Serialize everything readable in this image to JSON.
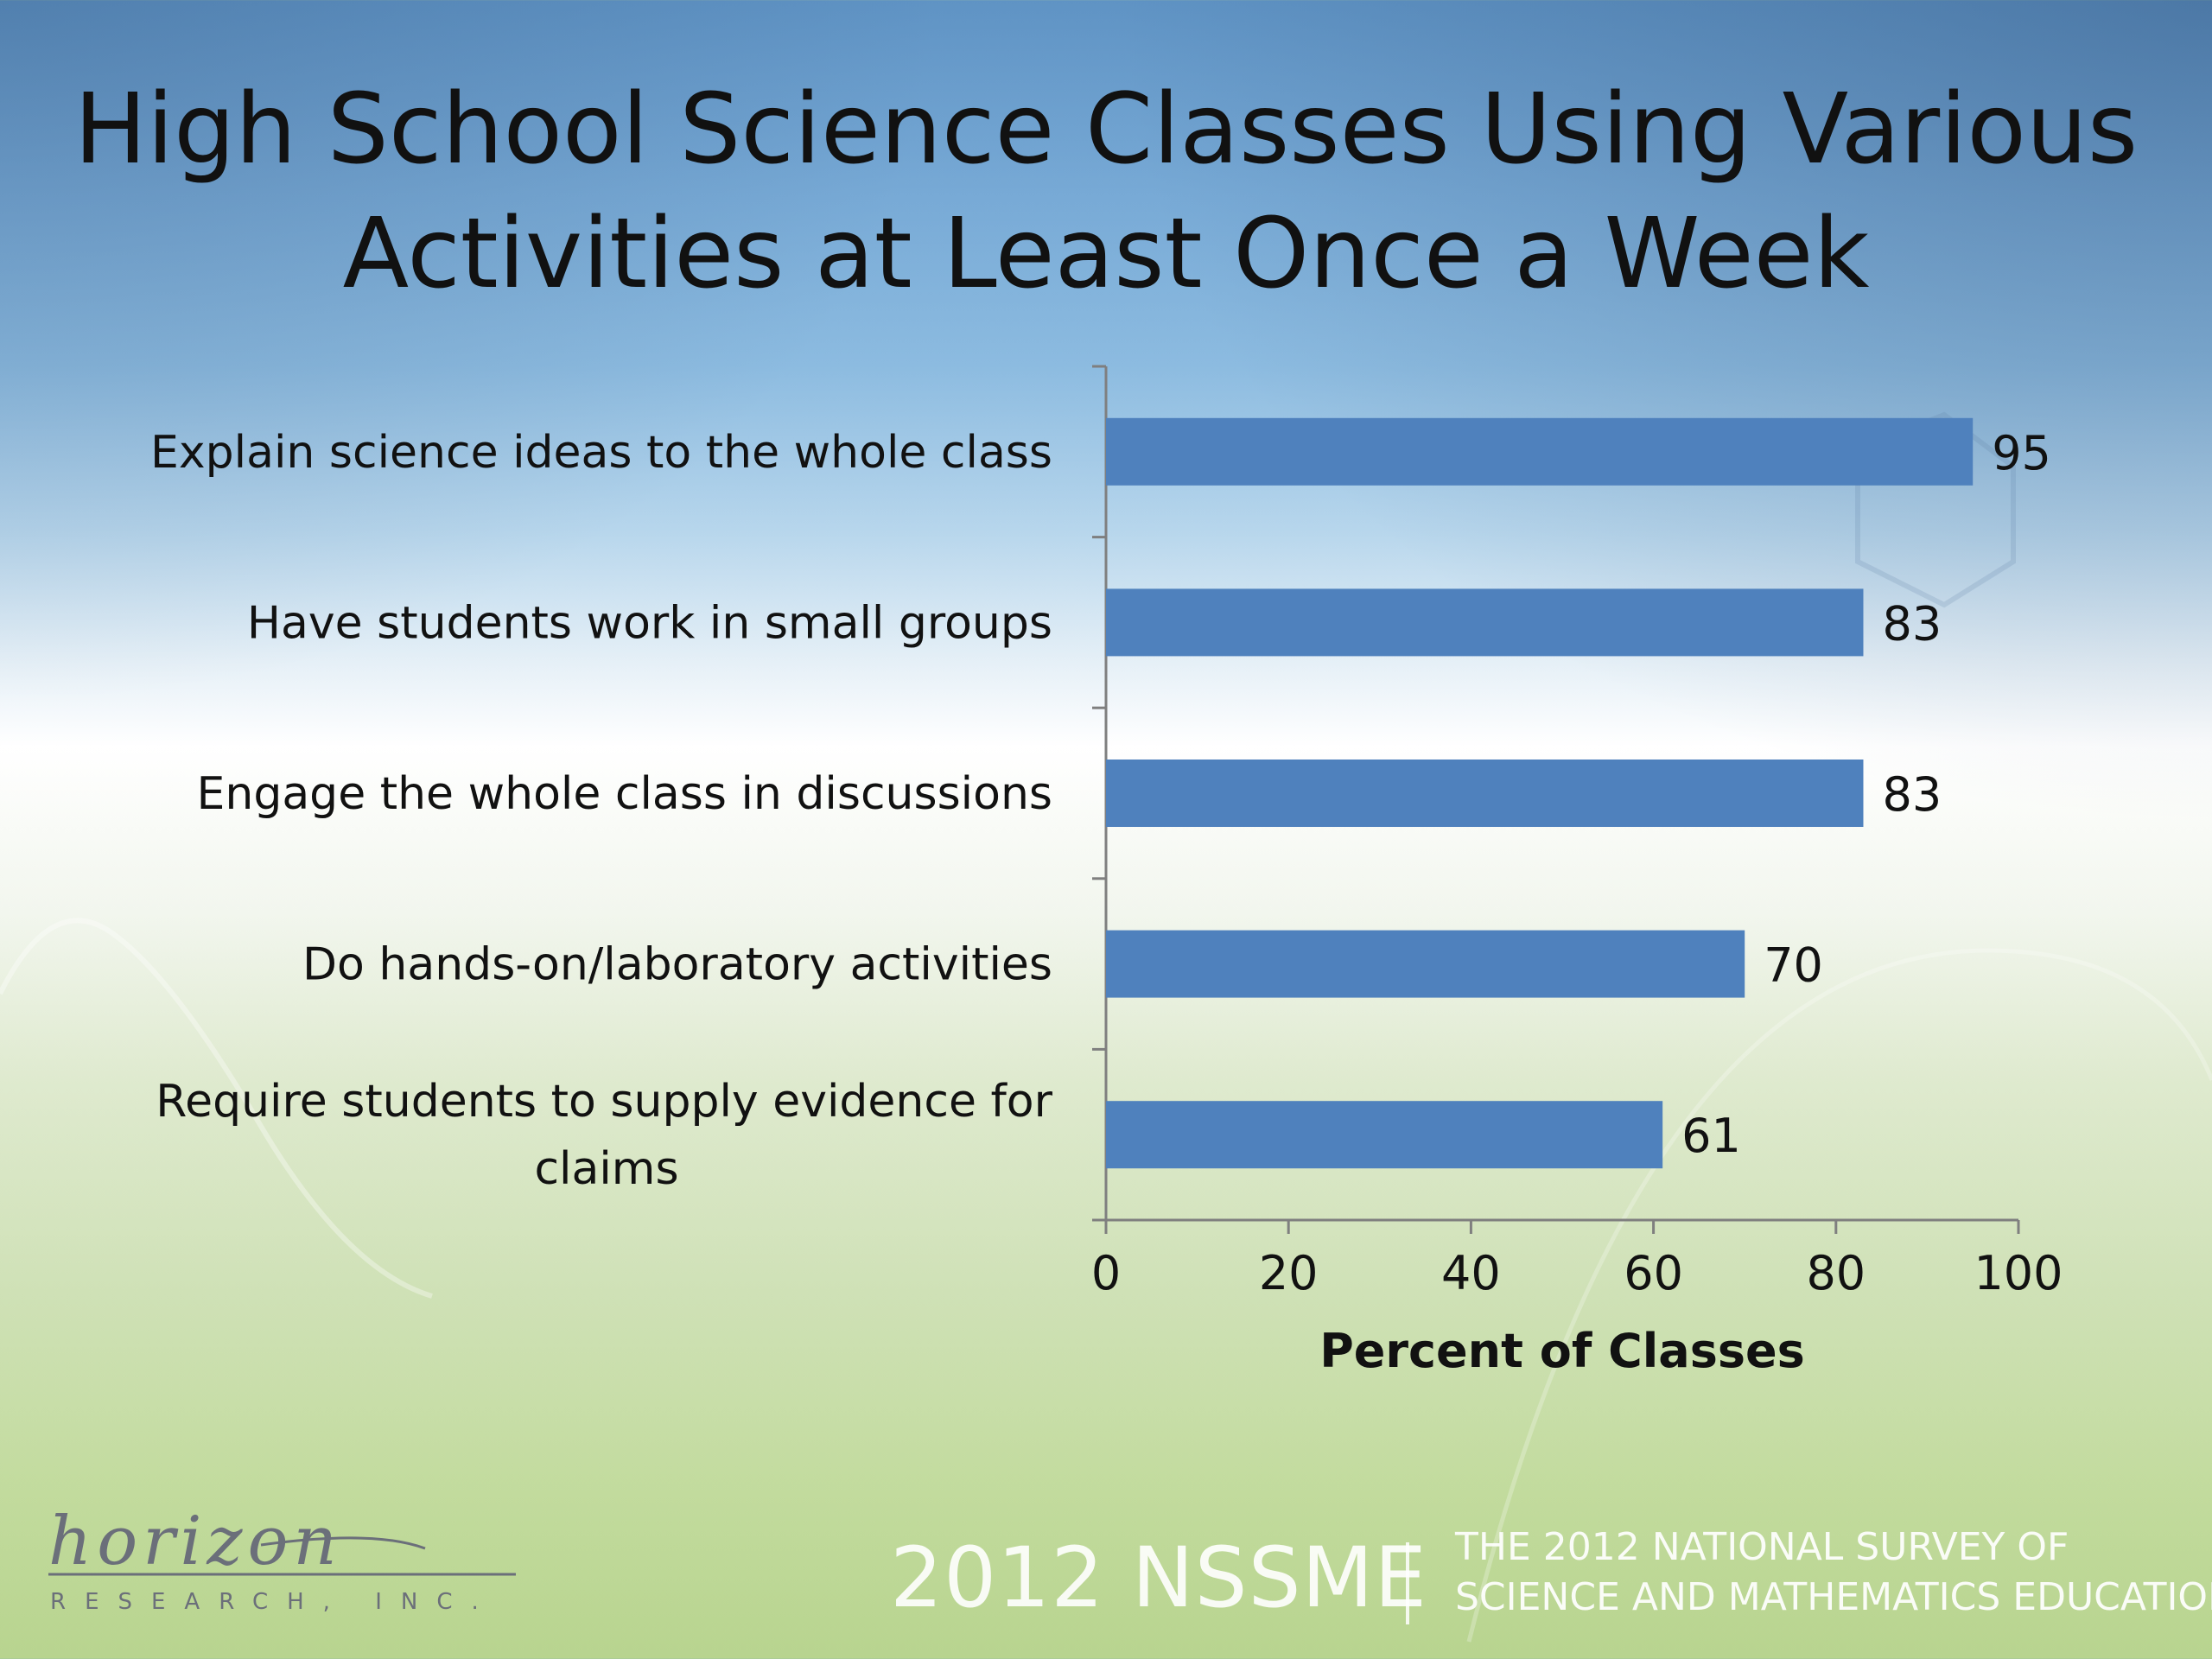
{
  "chart_data": {
    "type": "bar",
    "orientation": "horizontal",
    "title": "High School Science Classes Using Various Activities at Least Once a Week",
    "title_lines": [
      "High School Science Classes Using Various",
      "Activities at Least Once a Week"
    ],
    "categories": [
      "Explain science ideas to the whole class",
      "Have students work in small groups",
      "Engage the whole class in discussions",
      "Do hands-on/laboratory activities",
      "Require students to supply evidence for claims"
    ],
    "category_lines": [
      [
        "Explain science ideas to the whole class"
      ],
      [
        "Have students work in small groups"
      ],
      [
        "Engage the whole class in discussions"
      ],
      [
        "Do hands-on/laboratory activities"
      ],
      [
        "Require students to supply evidence for",
        "claims"
      ]
    ],
    "values": [
      95,
      83,
      83,
      70,
      61
    ],
    "data_labels": [
      "95",
      "83",
      "83",
      "70",
      "61"
    ],
    "xlabel": "Percent of Classes",
    "ylabel": "",
    "xlim": [
      0,
      100
    ],
    "xticks": [
      0,
      20,
      40,
      60,
      80,
      100
    ],
    "grid": false,
    "bar_color": "#4f81bd"
  },
  "footer": {
    "logo_word": "horizon",
    "logo_tagline": "RESEARCH, INC.",
    "nssme": "2012 NSSME",
    "subtitle_lines": [
      "THE 2012 NATIONAL SURVEY OF",
      "SCIENCE AND MATHEMATICS EDUCATION"
    ]
  }
}
